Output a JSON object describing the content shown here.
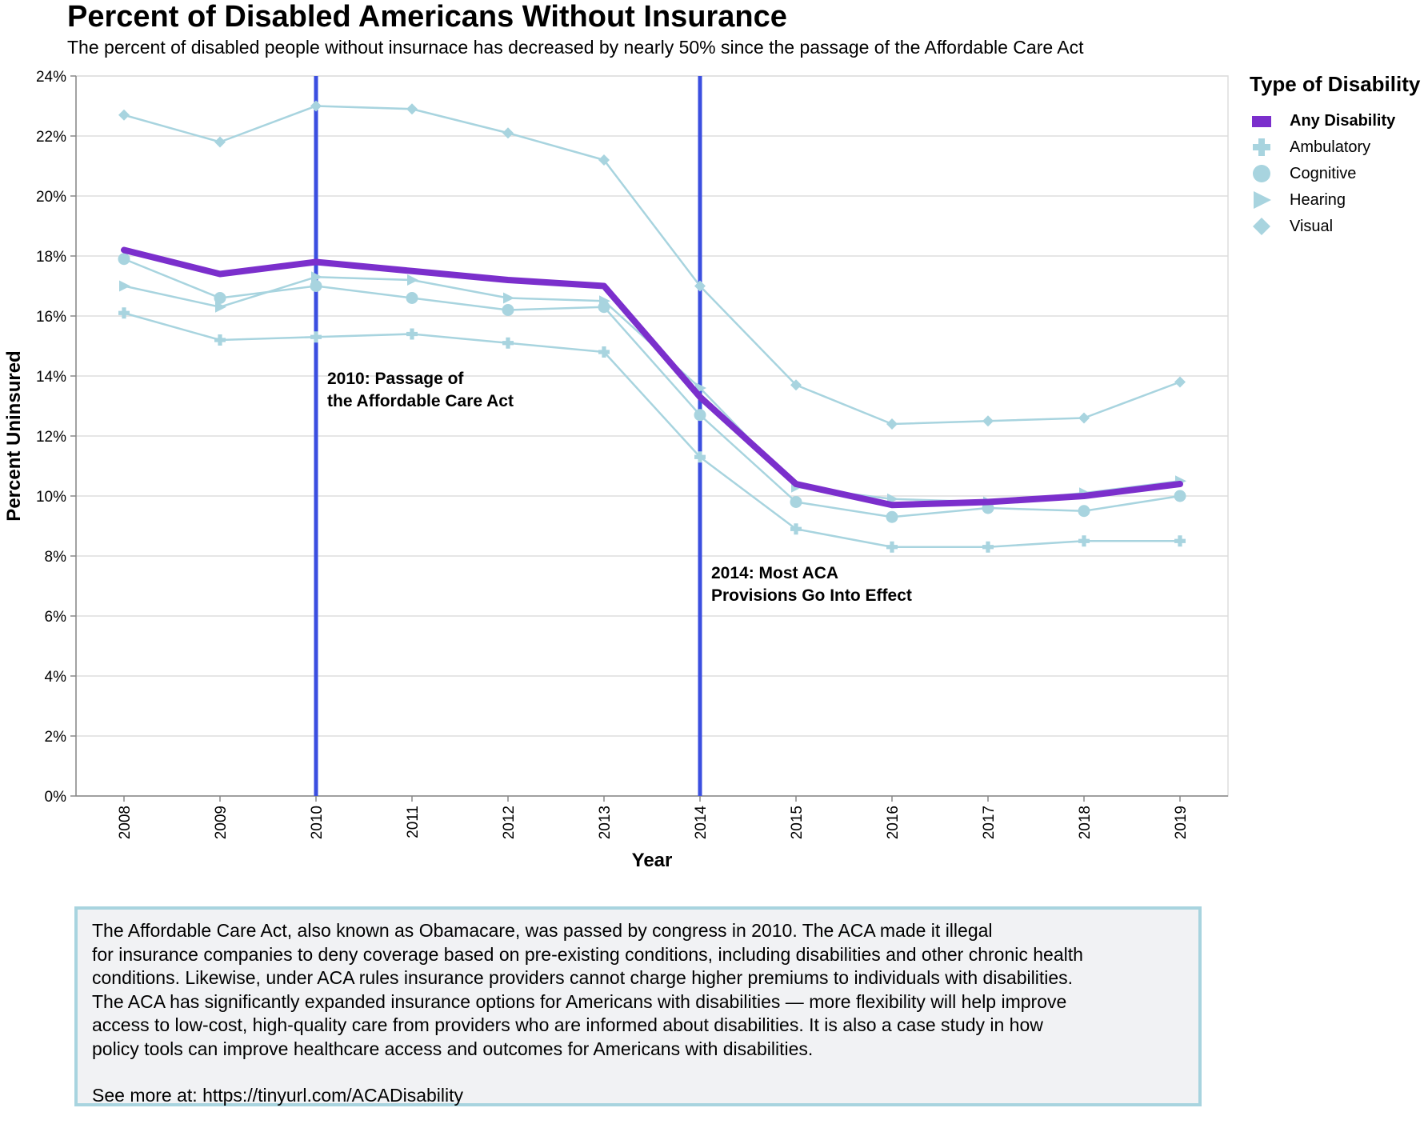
{
  "title": "Percent of Disabled Americans Without Insurance",
  "subtitle": "The percent of disabled people without insurnace has decreased by nearly 50% since the passage of the Affordable Care Act",
  "legend": {
    "title": "Type of Disability",
    "items": [
      {
        "label": "Any Disability",
        "icon": "square-icon",
        "bold": true
      },
      {
        "label": "Ambulatory",
        "icon": "cross-icon",
        "bold": false
      },
      {
        "label": "Cognitive",
        "icon": "circle-icon",
        "bold": false
      },
      {
        "label": "Hearing",
        "icon": "triangle-right-icon",
        "bold": false
      },
      {
        "label": "Visual",
        "icon": "diamond-icon",
        "bold": false
      }
    ]
  },
  "note": {
    "body": "The Affordable Care Act, also known as Obamacare, was passed by congress in 2010. The ACA made it illegal\nfor insurance companies to deny coverage based on pre-existing conditions, including disabilities and other chronic health\nconditions. Likewise, under ACA rules insurance providers cannot charge higher premiums to individuals with disabilities.\nThe ACA has significantly expanded insurance options for Americans with disabilities — more flexibility will help improve\naccess to low-cost, high-quality care from providers who are informed about disabilities. It is also a case study in how\npolicy tools can improve healthcare access and outcomes for Americans with disabilities.",
    "link_text": "See more at: https://tinyurl.com/ACADisability"
  },
  "colors": {
    "any_disability": "#7b2fcc",
    "subgroups": "#a8d4df",
    "rule": "#3b4fe0",
    "grid": "#dddddd",
    "note_border": "#a8d4df",
    "note_bg": "#f1f2f4"
  },
  "chart_data": {
    "type": "line",
    "title": "Percent of Disabled Americans Without Insurance",
    "xlabel": "Year",
    "ylabel": "Percent Uninsured",
    "x": [
      "2008",
      "2009",
      "2010",
      "2011",
      "2012",
      "2013",
      "2014",
      "2015",
      "2016",
      "2017",
      "2018",
      "2019"
    ],
    "ylim": [
      0,
      24
    ],
    "yticks": [
      "0%",
      "2%",
      "4%",
      "6%",
      "8%",
      "10%",
      "12%",
      "14%",
      "16%",
      "18%",
      "20%",
      "22%",
      "24%"
    ],
    "grid": true,
    "legend_position": "right",
    "series": [
      {
        "name": "Visual",
        "shape": "diamond",
        "values": [
          22.7,
          21.8,
          23.0,
          22.9,
          22.1,
          21.2,
          17.0,
          13.7,
          12.4,
          12.5,
          12.6,
          13.8
        ]
      },
      {
        "name": "Ambulatory",
        "shape": "cross",
        "values": [
          16.1,
          15.2,
          15.3,
          15.4,
          15.1,
          14.8,
          11.3,
          8.9,
          8.3,
          8.3,
          8.5,
          8.5
        ]
      },
      {
        "name": "Cognitive",
        "shape": "circle",
        "values": [
          17.9,
          16.6,
          17.0,
          16.6,
          16.2,
          16.3,
          12.7,
          9.8,
          9.3,
          9.6,
          9.5,
          10.0
        ]
      },
      {
        "name": "Hearing",
        "shape": "triangle-right",
        "values": [
          17.0,
          16.3,
          17.3,
          17.2,
          16.6,
          16.5,
          13.6,
          10.3,
          9.9,
          9.8,
          10.1,
          10.5
        ]
      },
      {
        "name": "Any Disability",
        "shape": "square",
        "values": [
          18.2,
          17.4,
          17.8,
          17.5,
          17.2,
          17.0,
          13.3,
          10.4,
          9.7,
          9.8,
          10.0,
          10.4
        ]
      }
    ],
    "annotations": [
      {
        "x": "2010",
        "lines": [
          "2010: Passage of",
          "the Affordable Care Act"
        ]
      },
      {
        "x": "2014",
        "lines": [
          "2014: Most ACA",
          "Provisions Go Into Effect"
        ]
      }
    ]
  }
}
